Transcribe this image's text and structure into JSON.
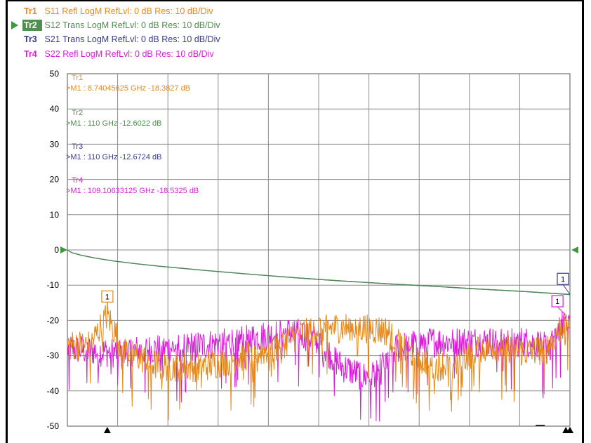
{
  "colors": {
    "tr1": "#e5891b",
    "tr2": "#4e8d4e",
    "tr3": "#3a3a8c",
    "tr4": "#d81fd8",
    "grid": "#8c8c8c"
  },
  "traces": [
    {
      "tag": "Tr1",
      "desc": "S11 Refl LogM RefLvl: 0  dB Res: 10  dB/Div",
      "active": false
    },
    {
      "tag": "Tr2",
      "desc": "S12 Trans LogM RefLvl: 0  dB Res: 10  dB/Div",
      "active": true
    },
    {
      "tag": "Tr3",
      "desc": "S21 Trans LogM RefLvl: 0  dB Res: 10  dB/Div",
      "active": false
    },
    {
      "tag": "Tr4",
      "desc": "S22 Refl LogM RefLvl: 0  dB Res: 10  dB/Div",
      "active": false
    }
  ],
  "markers": [
    {
      "trace": "Tr1",
      "text": ">M1 :  8.74045625 GHz  -18.3827  dB",
      "freq_ghz": 8.74045625,
      "value_db": -18.3827,
      "badge": "1"
    },
    {
      "trace": "Tr2",
      "text": ">M1 :  110 GHz  -12.6022  dB",
      "freq_ghz": 110,
      "value_db": -12.6022,
      "badge": "1"
    },
    {
      "trace": "Tr3",
      "text": ">M1 :  110 GHz  -12.6724  dB",
      "freq_ghz": 110,
      "value_db": -12.6724,
      "badge": ""
    },
    {
      "trace": "Tr4",
      "text": ">M1 :  109.10633125 GHz  -18.5325  dB",
      "freq_ghz": 109.10633125,
      "value_db": -18.5325,
      "badge": "1"
    }
  ],
  "chart_data": {
    "type": "line",
    "title": "",
    "xlabel": "",
    "ylabel": "",
    "xlim": [
      0,
      110
    ],
    "ylim": [
      -50,
      50
    ],
    "x_unit": "GHz",
    "y_unit": "dB",
    "y_ticks": [
      50,
      40,
      30,
      20,
      10,
      0,
      -10,
      -20,
      -30,
      -40,
      -50
    ],
    "x_divisions": 10,
    "grid": true,
    "reference_level_db": 0,
    "series": [
      {
        "name": "S11",
        "trace": "Tr1",
        "color": "#e5891b",
        "envelope_x": [
          0,
          5,
          8.74,
          12,
          20,
          30,
          45,
          52,
          56,
          60,
          65,
          70,
          75,
          80,
          85,
          90,
          95,
          100,
          105,
          109,
          110
        ],
        "envelope_y": [
          -27,
          -27,
          -18.38,
          -28,
          -33,
          -33,
          -28,
          -23,
          -22,
          -22,
          -22,
          -23,
          -29,
          -33,
          -32,
          -28,
          -27,
          -29,
          -28,
          -20,
          -20
        ]
      },
      {
        "name": "S12",
        "trace": "Tr2",
        "color": "#4e8d4e",
        "x": [
          0,
          1,
          3,
          6,
          10,
          15,
          20,
          30,
          40,
          50,
          60,
          70,
          80,
          90,
          100,
          110
        ],
        "y": [
          0,
          -0.8,
          -1.5,
          -2.3,
          -3.1,
          -3.9,
          -4.6,
          -5.8,
          -6.9,
          -7.9,
          -8.8,
          -9.6,
          -10.3,
          -11.1,
          -11.8,
          -12.6
        ]
      },
      {
        "name": "S21",
        "trace": "Tr3",
        "color": "#3a3a8c",
        "x": [
          0,
          1,
          3,
          6,
          10,
          15,
          20,
          30,
          40,
          50,
          60,
          70,
          80,
          90,
          100,
          110
        ],
        "y": [
          0,
          -0.8,
          -1.5,
          -2.3,
          -3.1,
          -3.9,
          -4.6,
          -5.8,
          -6.9,
          -7.9,
          -8.8,
          -9.6,
          -10.3,
          -11.1,
          -11.8,
          -12.67
        ]
      },
      {
        "name": "S22",
        "trace": "Tr4",
        "color": "#d81fd8",
        "envelope_x": [
          0,
          10,
          20,
          30,
          40,
          45,
          50,
          55,
          60,
          65,
          68,
          72,
          78,
          85,
          90,
          95,
          100,
          105,
          109.1,
          110
        ],
        "envelope_y": [
          -28,
          -29,
          -28,
          -27,
          -25,
          -24,
          -23,
          -26,
          -33,
          -36,
          -34,
          -28,
          -26,
          -26,
          -26,
          -26,
          -26,
          -27,
          -18.53,
          -20
        ]
      }
    ]
  }
}
